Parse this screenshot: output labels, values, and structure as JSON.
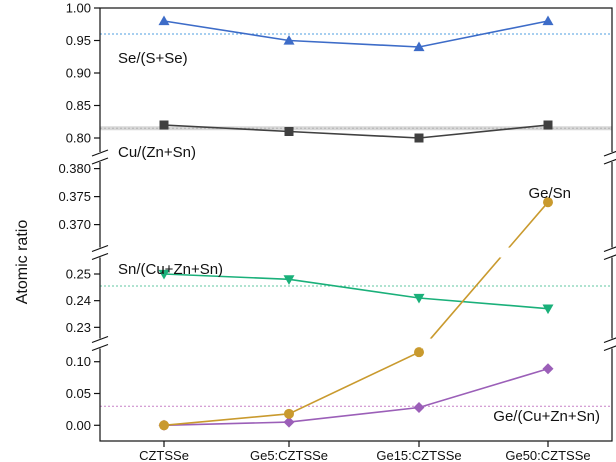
{
  "chart_data": {
    "type": "line",
    "ylabel": "Atomic ratio",
    "categories": [
      "CZTSSe",
      "Ge5:CZTSSe",
      "Ge15:CZTSSe",
      "Ge50:CZTSSe"
    ],
    "y_axis_broken": true,
    "segments": [
      {
        "range": [
          0.78,
          1.0
        ],
        "ticks": [
          "0.80",
          "0.85",
          "0.90",
          "0.95",
          "1.00"
        ]
      },
      {
        "range": [
          0.366,
          0.381
        ],
        "ticks": [
          "0.370",
          "0.375",
          "0.380"
        ]
      },
      {
        "range": [
          0.226,
          0.256
        ],
        "ticks": [
          "0.23",
          "0.24",
          "0.25"
        ]
      },
      {
        "range": [
          -0.02,
          0.12
        ],
        "ticks": [
          "0.00",
          "0.05",
          "0.10"
        ]
      }
    ],
    "series": [
      {
        "name": "Se/(S+Se)",
        "color": "#3d6cc8",
        "marker": "triangle-up",
        "segment": 0,
        "values": [
          0.98,
          0.95,
          0.94,
          0.98
        ]
      },
      {
        "name": "Cu/(Zn+Sn)",
        "color": "#404040",
        "marker": "square",
        "segment": 0,
        "values": [
          0.82,
          0.81,
          0.8,
          0.82
        ]
      },
      {
        "name": "Sn/(Cu+Zn+Sn)",
        "color": "#1ab07a",
        "marker": "triangle-down",
        "segment": 2,
        "values": [
          0.25,
          0.248,
          0.241,
          0.237
        ]
      },
      {
        "name": "Ge/(Cu+Zn+Sn)",
        "color": "#9b5fb8",
        "marker": "diamond",
        "segment": 3,
        "values": [
          0.0,
          0.005,
          0.028,
          0.089
        ]
      },
      {
        "name": "Ge/Sn",
        "color": "#c99a2e",
        "marker": "circle",
        "values": [
          0.0,
          0.018,
          0.115,
          0.374
        ]
      }
    ],
    "reference_lines": [
      {
        "segment": 0,
        "value": 0.96,
        "color": "#4f9fe0"
      },
      {
        "segment": 0,
        "value": 0.815,
        "color": "#808080"
      },
      {
        "segment": 2,
        "value": 0.2455,
        "color": "#5fc7a0"
      },
      {
        "segment": 3,
        "value": 0.03,
        "color": "#c781c7"
      }
    ],
    "grid": false,
    "legend": "none"
  }
}
